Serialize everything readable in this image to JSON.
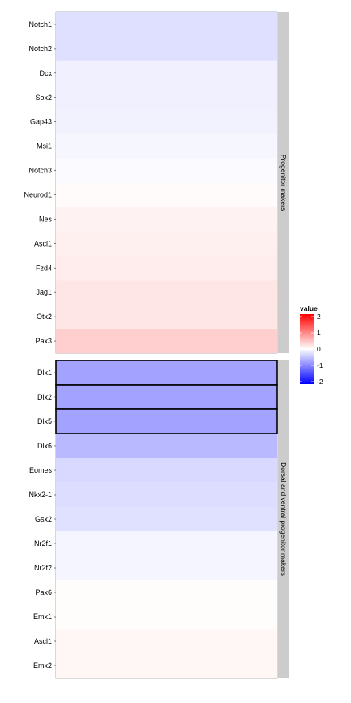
{
  "chart_data": {
    "type": "heatmap",
    "legend": {
      "title": "value",
      "placement": "right",
      "limits": [
        -2,
        2
      ],
      "ticks": [
        "2",
        "1",
        "0",
        "-1",
        "-2"
      ],
      "low_color": "#0000ff",
      "mid_color": "#ffffff",
      "high_color": "#ff0000"
    },
    "panels": [
      {
        "strip_label": "Progenitor makers",
        "rows": [
          {
            "gene": "Notch1",
            "value": -0.25,
            "highlight": false
          },
          {
            "gene": "Notch2",
            "value": -0.25,
            "highlight": false
          },
          {
            "gene": "Dcx",
            "value": -0.12,
            "highlight": false
          },
          {
            "gene": "Sox2",
            "value": -0.12,
            "highlight": false
          },
          {
            "gene": "Gap43",
            "value": -0.1,
            "highlight": false
          },
          {
            "gene": "Msi1",
            "value": -0.07,
            "highlight": false
          },
          {
            "gene": "Notch3",
            "value": -0.04,
            "highlight": false
          },
          {
            "gene": "Neurod1",
            "value": 0.03,
            "highlight": false
          },
          {
            "gene": "Nes",
            "value": 0.1,
            "highlight": false
          },
          {
            "gene": "Ascl1",
            "value": 0.12,
            "highlight": false
          },
          {
            "gene": "Fzd4",
            "value": 0.15,
            "highlight": false
          },
          {
            "gene": "Jag1",
            "value": 0.2,
            "highlight": false
          },
          {
            "gene": "Otx2",
            "value": 0.2,
            "highlight": false
          },
          {
            "gene": "Pax3",
            "value": 0.38,
            "highlight": false
          }
        ]
      },
      {
        "strip_label": "Dorsal and ventral progenitor makers",
        "rows": [
          {
            "gene": "Dlx1",
            "value": -0.72,
            "highlight": true
          },
          {
            "gene": "Dlx2",
            "value": -0.72,
            "highlight": true
          },
          {
            "gene": "Dlx5",
            "value": -0.72,
            "highlight": true
          },
          {
            "gene": "Dlx6",
            "value": -0.55,
            "highlight": false
          },
          {
            "gene": "Eomes",
            "value": -0.3,
            "highlight": false
          },
          {
            "gene": "Nkx2-1",
            "value": -0.27,
            "highlight": false
          },
          {
            "gene": "Gsx2",
            "value": -0.24,
            "highlight": false
          },
          {
            "gene": "Nr2f1",
            "value": -0.08,
            "highlight": false
          },
          {
            "gene": "Nr2f2",
            "value": -0.08,
            "highlight": false
          },
          {
            "gene": "Pax6",
            "value": 0.02,
            "highlight": false
          },
          {
            "gene": "Emx1",
            "value": 0.02,
            "highlight": false
          },
          {
            "gene": "Ascl1",
            "value": 0.07,
            "highlight": false
          },
          {
            "gene": "Emx2",
            "value": 0.07,
            "highlight": false
          }
        ]
      }
    ]
  }
}
